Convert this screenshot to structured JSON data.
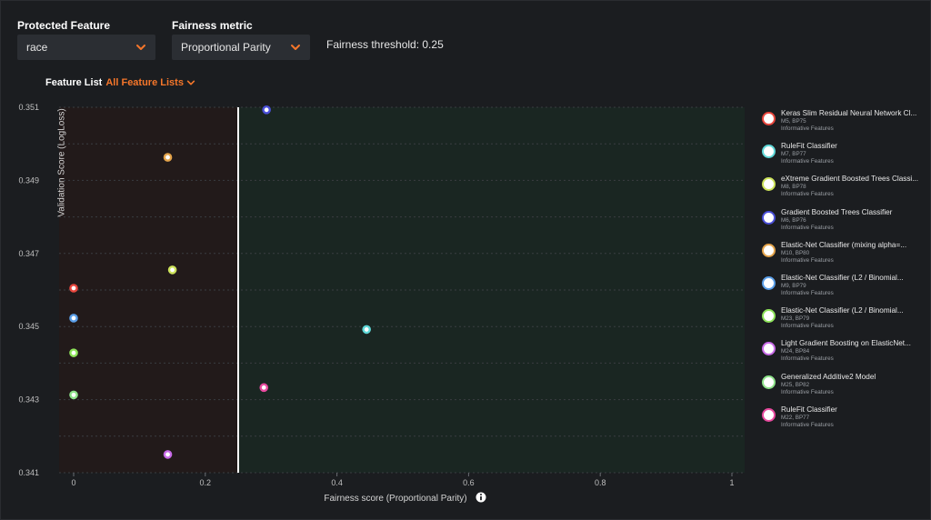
{
  "controls": {
    "protected_feature": {
      "label": "Protected Feature",
      "value": "race"
    },
    "fairness_metric": {
      "label": "Fairness metric",
      "value": "Proportional Parity"
    },
    "threshold_text": "Fairness threshold: 0.25",
    "feature_list": {
      "label": "Feature List",
      "value": "All Feature Lists"
    }
  },
  "colors": {
    "accent": "#f5762a",
    "below_threshold_region": "#221a1a",
    "above_threshold_region": "#1a2622",
    "threshold_line": "#ffffff"
  },
  "icons": {
    "select_chevron": "chevron-down-icon",
    "info": "info-icon"
  },
  "chart_data": {
    "type": "scatter",
    "xlabel": "Fairness score (Proportional Parity)",
    "ylabel": "Validation Score (LogLoss)",
    "xlim": [
      0,
      1
    ],
    "ylim": [
      0.341,
      0.351
    ],
    "x_ticks": [
      0,
      0.2,
      0.4,
      0.6,
      0.8,
      1
    ],
    "x_tick_labels": [
      "0",
      "0.2",
      "0.4",
      "0.6",
      "0.8",
      "1"
    ],
    "y_ticks": [
      0.341,
      0.343,
      0.345,
      0.347,
      0.349,
      0.351
    ],
    "y_tick_labels": [
      "0.341",
      "0.343",
      "0.345",
      "0.347",
      "0.349",
      "0.351"
    ],
    "threshold": 0.25,
    "grid": true,
    "legend_position": "right",
    "points": [
      {
        "x": 0.0,
        "y": 0.34605,
        "color": "#e8463d"
      },
      {
        "x": 0.445,
        "y": 0.34492,
        "color": "#5ed7d7"
      },
      {
        "x": 0.15,
        "y": 0.34655,
        "color": "#cde35a"
      },
      {
        "x": 0.293,
        "y": 0.35093,
        "color": "#4a4fd8"
      },
      {
        "x": 0.143,
        "y": 0.34963,
        "color": "#e3a34a"
      },
      {
        "x": 0.0,
        "y": 0.34523,
        "color": "#5a9ee8"
      },
      {
        "x": 0.0,
        "y": 0.34428,
        "color": "#8ee35a"
      },
      {
        "x": 0.143,
        "y": 0.3415,
        "color": "#c86ae8"
      },
      {
        "x": 0.0,
        "y": 0.34313,
        "color": "#8ee38a"
      },
      {
        "x": 0.289,
        "y": 0.34333,
        "color": "#e84a9e"
      }
    ],
    "series": [
      {
        "name": "Keras Slim Residual Neural Network Cl...",
        "model": "M5, BP75",
        "feature_list": "Informative Features",
        "color": "#e8463d"
      },
      {
        "name": "RuleFit Classifier",
        "model": "M7, BP77",
        "feature_list": "Informative Features",
        "color": "#5ed7d7"
      },
      {
        "name": "eXtreme Gradient Boosted Trees Classi...",
        "model": "M8, BP78",
        "feature_list": "Informative Features",
        "color": "#cde35a"
      },
      {
        "name": "Gradient Boosted Trees Classifier",
        "model": "M6, BP76",
        "feature_list": "Informative Features",
        "color": "#4a4fd8"
      },
      {
        "name": "Elastic-Net Classifier (mixing alpha=...",
        "model": "M10, BP80",
        "feature_list": "Informative Features",
        "color": "#e3a34a"
      },
      {
        "name": "Elastic-Net Classifier (L2 / Binomial...",
        "model": "M9, BP79",
        "feature_list": "Informative Features",
        "color": "#5a9ee8"
      },
      {
        "name": "Elastic-Net Classifier (L2 / Binomial...",
        "model": "M23, BP79",
        "feature_list": "Informative Features",
        "color": "#8ee35a"
      },
      {
        "name": "Light Gradient Boosting on ElasticNet...",
        "model": "M24, BP84",
        "feature_list": "Informative Features",
        "color": "#c86ae8"
      },
      {
        "name": "Generalized Additive2 Model",
        "model": "M25, BP82",
        "feature_list": "Informative Features",
        "color": "#8ee38a"
      },
      {
        "name": "RuleFit Classifier",
        "model": "M22, BP77",
        "feature_list": "Informative Features",
        "color": "#e84a9e"
      }
    ]
  }
}
